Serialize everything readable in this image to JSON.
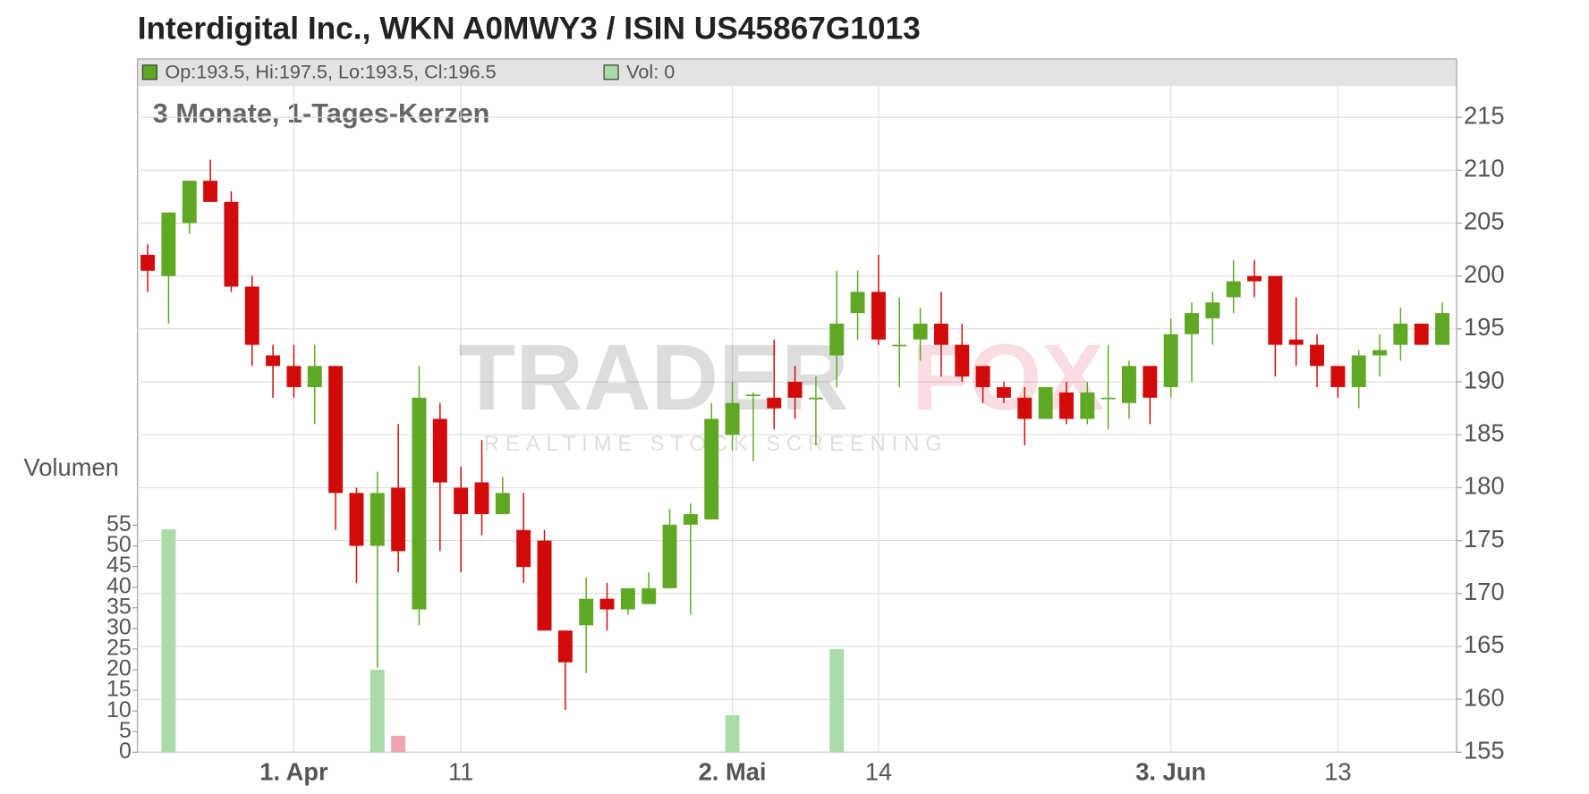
{
  "chart_data": {
    "type": "candlestick",
    "title": "Interdigital Inc., WKN A0MWY3 / ISIN US45867G1013",
    "subtitle": "3 Monate, 1-Tages-Kerzen",
    "ohlc_legend": "Op:193.5, Hi:197.5, Lo:193.5, Cl:196.5",
    "volume_legend": "Vol: 0",
    "volume_axis_label": "Volumen",
    "watermark": {
      "text_1": "TRADER",
      "text_2": "FOX",
      "tagline": "REALTIME STOCK SCREENING"
    },
    "categories": [
      null,
      null,
      null,
      null,
      null,
      null,
      null,
      "1. Apr",
      null,
      null,
      null,
      null,
      null,
      null,
      null,
      "11",
      null,
      null,
      null,
      null,
      null,
      null,
      null,
      null,
      null,
      null,
      null,
      null,
      "2. Mai",
      null,
      null,
      null,
      null,
      null,
      null,
      "14",
      null,
      null,
      null,
      null,
      null,
      null,
      null,
      null,
      null,
      null,
      null,
      null,
      null,
      "3. Jun",
      null,
      null,
      null,
      null,
      null,
      null,
      null,
      "13",
      null,
      null,
      null,
      null,
      null
    ],
    "open": [
      202,
      200,
      205,
      209,
      207,
      199,
      192.5,
      191.5,
      189.5,
      191.5,
      179.5,
      174.5,
      180,
      168.5,
      186.5,
      180,
      180.5,
      177.5,
      176,
      175,
      166.5,
      167,
      169.5,
      168.5,
      169,
      170.5,
      176.5,
      177,
      185,
      188.8,
      188.5,
      190,
      188.5,
      192.5,
      196.5,
      198.5,
      193.5,
      194,
      195.5,
      193.5,
      191.5,
      189.5,
      188.5,
      186.5,
      189,
      186.5,
      188.5,
      188,
      191.5,
      189.5,
      194.5,
      196,
      198,
      200,
      200,
      194,
      193.5,
      191.5,
      189.5,
      192.5,
      193.5,
      195.5,
      193.5
    ],
    "high": [
      203,
      206,
      209,
      211,
      208,
      200,
      193.5,
      193.5,
      193.5,
      191.5,
      180,
      181.5,
      186,
      191.5,
      188,
      182,
      184.5,
      181,
      179.5,
      176,
      166.5,
      171.5,
      171,
      170.5,
      172,
      178,
      178.5,
      188,
      190,
      189,
      194,
      191.5,
      190.5,
      200.5,
      200.5,
      202,
      198,
      197,
      198.5,
      195.5,
      191.5,
      190,
      189.5,
      189.5,
      190,
      190,
      193.5,
      192,
      191.5,
      196,
      197.5,
      198.5,
      201.5,
      201.5,
      200,
      198,
      194.5,
      191.5,
      193,
      194.5,
      197,
      195.5,
      197.5
    ],
    "low": [
      198.5,
      195.5,
      204,
      207,
      198.5,
      191.5,
      188.5,
      188.5,
      186,
      176,
      171,
      163,
      172,
      167,
      174,
      172,
      175.5,
      177.5,
      171,
      166.5,
      159,
      162.5,
      166.5,
      168,
      169,
      170.5,
      168,
      177,
      183.5,
      182.5,
      185.5,
      186.5,
      184,
      189.5,
      194,
      193.5,
      189.5,
      192,
      190.5,
      190,
      188,
      188,
      184,
      186.5,
      186,
      186,
      185.5,
      186.5,
      186,
      188.5,
      190,
      193.5,
      196.5,
      198,
      190.5,
      191.5,
      189.5,
      188.5,
      187.5,
      190.5,
      192,
      193.5,
      193.5
    ],
    "close": [
      200.5,
      206,
      209,
      207,
      199,
      193.5,
      191.5,
      189.5,
      191.5,
      179.5,
      174.5,
      179.5,
      174,
      188.5,
      180.5,
      177.5,
      177.5,
      179.5,
      172.5,
      166.5,
      163.5,
      169.5,
      168.5,
      170.5,
      170.5,
      176.5,
      177.5,
      186.5,
      188,
      188.8,
      187.5,
      188.5,
      188.5,
      195.5,
      198.5,
      194,
      193.5,
      195.5,
      193.5,
      190.5,
      189.5,
      188.5,
      186.5,
      189.5,
      186.5,
      189,
      188.5,
      191.5,
      188.5,
      194.5,
      196.5,
      197.5,
      199.5,
      199.5,
      193.5,
      193.5,
      191.5,
      189.5,
      192.5,
      193,
      195.5,
      193.5,
      196.5
    ],
    "volume": [
      0,
      54,
      0,
      0,
      0,
      0,
      0,
      0,
      0,
      0,
      0,
      20,
      4,
      0,
      0,
      0,
      0,
      0,
      0,
      0,
      0,
      0,
      0,
      0,
      0,
      0,
      0,
      0,
      9,
      0,
      0,
      0,
      0,
      25,
      0,
      0,
      0,
      0,
      0,
      0,
      0,
      0,
      0,
      0,
      0,
      0,
      0,
      0,
      0,
      0,
      0,
      0,
      0,
      0,
      0,
      0,
      0,
      0,
      0,
      0,
      0,
      0,
      0
    ],
    "up_color": "#5fa823",
    "down_color": "#d10a0a",
    "volume_up_color": "#a9dca7",
    "volume_down_color": "#f0a3b1",
    "ylim": [
      155,
      218
    ],
    "yticks": [
      155,
      160,
      165,
      170,
      175,
      180,
      185,
      190,
      195,
      200,
      205,
      210,
      215
    ],
    "y2lim": [
      0,
      55
    ],
    "y2ticks": [
      0,
      5,
      10,
      15,
      20,
      25,
      30,
      35,
      40,
      45,
      50,
      55
    ],
    "grid": true
  }
}
